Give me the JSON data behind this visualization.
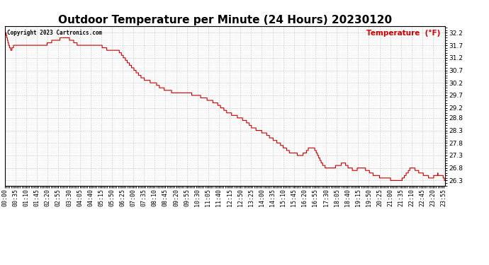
{
  "title": "Outdoor Temperature per Minute (24 Hours) 20230120",
  "copyright_text": "Copyright 2023 Cartronics.com",
  "legend_label": "Temperature  (°F)",
  "line_color": "#cc0000",
  "copyright_color": "#000000",
  "legend_color": "#cc0000",
  "background_color": "#ffffff",
  "grid_color": "#bbbbbb",
  "title_fontsize": 11,
  "tick_fontsize": 6.0,
  "legend_fontsize": 7.5,
  "yticks": [
    26.3,
    26.8,
    27.3,
    27.8,
    28.3,
    28.8,
    29.2,
    29.7,
    30.2,
    30.7,
    31.2,
    31.7,
    32.2
  ],
  "ylim": [
    26.1,
    32.45
  ],
  "total_minutes": 1440,
  "figsize": [
    6.9,
    3.75
  ],
  "dpi": 100
}
